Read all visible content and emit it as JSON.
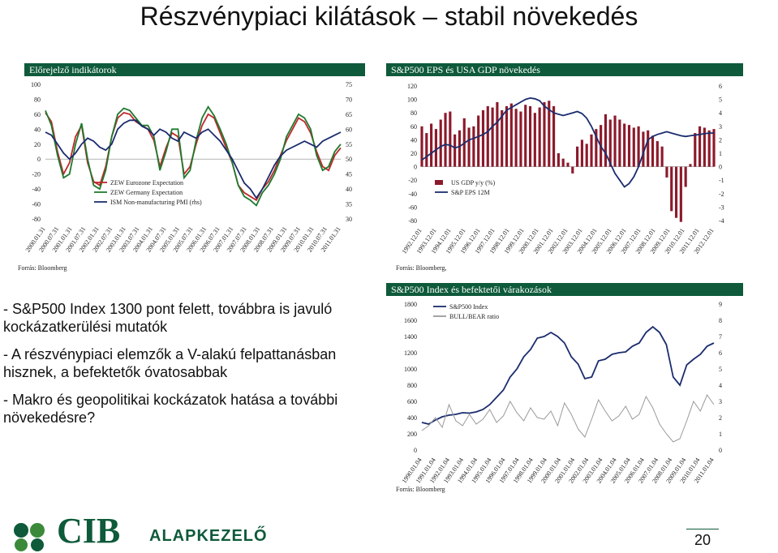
{
  "slide": {
    "title": "Részvénypiaci kilátások – stabil növekedés",
    "page_number": "20",
    "logo_text": "CIB",
    "logo_sub": "ALAPKEZELŐ",
    "bullets": [
      "- S&P500 Index 1300 pont felett, továbbra is javuló kockázatkerülési mutatók",
      "- A részvénypiaci elemzők a V-alakú felpattanásban hisznek, a befektetők óvatosabbak",
      "- Makro és geopolitikai kockázatok hatása a további növekedésre?"
    ]
  },
  "chart_data": [
    {
      "type": "line",
      "panel_title": "Előrejelző indikátorok",
      "source": "Forrás: Bloomberg",
      "ylim": [
        -80,
        100
      ],
      "y2lim": [
        30,
        75
      ],
      "yticks": [
        "100",
        "80",
        "60",
        "40",
        "20",
        "0",
        "-20",
        "-40",
        "-60",
        "-80"
      ],
      "y2ticks": [
        "75",
        "70",
        "65",
        "60",
        "55",
        "50",
        "45",
        "40",
        "35",
        "30"
      ],
      "xticks": [
        "2000.01.31",
        "2000.07.31",
        "2001.01.31",
        "2001.07.31",
        "2002.01.31",
        "2002.07.31",
        "2003.01.31",
        "2003.07.31",
        "2004.01.31",
        "2004.07.31",
        "2005.01.31",
        "2005.07.31",
        "2006.01.31",
        "2006.07.31",
        "2007.01.31",
        "2007.07.31",
        "2008.01.31",
        "2008.07.31",
        "2009.01.31",
        "2009.07.31",
        "2010.01.31",
        "2010.07.31",
        "2011.01.31"
      ],
      "series": [
        {
          "name": "ZEW Eurozone Expectation",
          "color": "#c0282a",
          "axis": "left",
          "values": [
            62,
            50,
            10,
            -20,
            -5,
            30,
            45,
            -5,
            -30,
            -35,
            -10,
            30,
            55,
            62,
            60,
            50,
            45,
            40,
            25,
            -10,
            15,
            35,
            30,
            -20,
            -10,
            20,
            45,
            60,
            55,
            35,
            15,
            -5,
            -35,
            -45,
            -50,
            -55,
            -40,
            -30,
            -15,
            5,
            25,
            40,
            55,
            50,
            35,
            10,
            -10,
            -15,
            5,
            15
          ]
        },
        {
          "name": "ZEW Germany Expectation",
          "color": "#1f7a2e",
          "axis": "left",
          "values": [
            65,
            45,
            5,
            -25,
            -20,
            20,
            48,
            0,
            -35,
            -40,
            -15,
            30,
            60,
            68,
            65,
            55,
            45,
            45,
            30,
            -15,
            10,
            40,
            40,
            -25,
            -15,
            25,
            55,
            70,
            58,
            40,
            20,
            -5,
            -35,
            -50,
            -55,
            -62,
            -45,
            -35,
            -20,
            0,
            30,
            45,
            60,
            55,
            40,
            5,
            -15,
            -10,
            10,
            20
          ]
        },
        {
          "name": "ISM Non-manufacturing PMI (rhs)",
          "color": "#1b2c6e",
          "axis": "right",
          "values": [
            59,
            58,
            55,
            52,
            50,
            52,
            55,
            57,
            56,
            54,
            53,
            55,
            60,
            62,
            63,
            63,
            61,
            60,
            58,
            60,
            59,
            57,
            56,
            59,
            58,
            57,
            59,
            60,
            58,
            56,
            53,
            50,
            46,
            42,
            40,
            37,
            40,
            44,
            48,
            51,
            53,
            54,
            55,
            56,
            55,
            54,
            56,
            57,
            58,
            59
          ]
        }
      ]
    },
    {
      "type": "bar",
      "panel_title": "S&P500 EPS és USA GDP növekedés",
      "source": "Forrás: Bloomberg,",
      "ylim": [
        -80,
        120
      ],
      "y2lim": [
        -4,
        6
      ],
      "yticks": [
        "120",
        "100",
        "80",
        "60",
        "40",
        "20",
        "0",
        "-20",
        "-40",
        "-60",
        "-80"
      ],
      "y2ticks": [
        "6",
        "5",
        "4",
        "3",
        "2",
        "1",
        "0",
        "-1",
        "-2",
        "-3",
        "-4"
      ],
      "xticks": [
        "1992.12.01",
        "1993.12.01",
        "1994.12.01",
        "1995.12.01",
        "1996.12.01",
        "1997.12.01",
        "1998.12.01",
        "1999.12.01",
        "2000.12.01",
        "2001.12.01",
        "2002.12.01",
        "2003.12.01",
        "2004.12.01",
        "2005.12.01",
        "2006.12.01",
        "2007.12.01",
        "2008.12.01",
        "2009.12.01",
        "2010.12.01",
        "2011.12.01",
        "2012.12.01"
      ],
      "series": [
        {
          "name": "US GDP y/y (%)",
          "color": "#8b1a2b",
          "axis": "right",
          "kind": "bar",
          "values": [
            3.0,
            2.5,
            3.2,
            2.8,
            3.5,
            4.0,
            4.1,
            2.4,
            2.7,
            3.6,
            2.9,
            3.0,
            3.8,
            4.2,
            4.5,
            4.4,
            4.8,
            4.2,
            4.5,
            4.7,
            4.3,
            4.1,
            4.6,
            4.5,
            4.0,
            4.4,
            4.8,
            4.9,
            4.5,
            1.0,
            0.6,
            0.3,
            -0.5,
            1.5,
            2.0,
            1.7,
            2.4,
            2.8,
            3.1,
            3.9,
            3.5,
            3.8,
            3.5,
            3.2,
            3.1,
            2.9,
            3.0,
            2.6,
            2.7,
            2.3,
            1.9,
            1.5,
            -0.8,
            -3.3,
            -3.8,
            -4.1,
            -1.5,
            0.2,
            2.5,
            3.0,
            2.9,
            2.7,
            2.8
          ]
        },
        {
          "name": "S&P EPS 12M",
          "color": "#1b2c6e",
          "axis": "left",
          "kind": "line",
          "values": [
            10,
            15,
            20,
            25,
            30,
            33,
            32,
            28,
            30,
            35,
            40,
            42,
            45,
            48,
            52,
            60,
            66,
            75,
            84,
            88,
            92,
            96,
            100,
            102,
            101,
            98,
            90,
            85,
            80,
            78,
            76,
            78,
            80,
            82,
            79,
            72,
            60,
            45,
            30,
            20,
            5,
            -10,
            -20,
            -30,
            -25,
            -15,
            0,
            20,
            40,
            45,
            48,
            50,
            52,
            50,
            48,
            46,
            45,
            46,
            47,
            48,
            49,
            50,
            50
          ]
        }
      ]
    },
    {
      "type": "line",
      "panel_title": "S&P500 Index és befektetői várakozások",
      "source": "Forrás: Bloomberg",
      "ylim": [
        0,
        1800
      ],
      "y2lim": [
        0,
        9
      ],
      "yticks": [
        "1800",
        "1600",
        "1400",
        "1200",
        "1000",
        "800",
        "600",
        "400",
        "200",
        "0"
      ],
      "y2ticks": [
        "9",
        "8",
        "7",
        "6",
        "5",
        "4",
        "3",
        "2",
        "1",
        "0"
      ],
      "xticks": [
        "1990.01.04",
        "1991.01.04",
        "1992.01.04",
        "1993.01.04",
        "1994.01.04",
        "1995.01.04",
        "1996.01.04",
        "1997.01.04",
        "1998.01.04",
        "1999.01.04",
        "2000.01.04",
        "2001.01.04",
        "2002.01.04",
        "2003.01.04",
        "2004.01.04",
        "2005.01.04",
        "2006.01.04",
        "2007.01.04",
        "2008.01.04",
        "2009.01.04",
        "2010.01.04",
        "2011.01.04"
      ],
      "series": [
        {
          "name": "S&P500 Index",
          "color": "#1b2c6e",
          "axis": "left",
          "values": [
            340,
            320,
            370,
            410,
            430,
            440,
            460,
            455,
            470,
            500,
            560,
            650,
            740,
            900,
            1000,
            1150,
            1240,
            1380,
            1400,
            1450,
            1400,
            1320,
            1150,
            1060,
            880,
            900,
            1100,
            1120,
            1180,
            1200,
            1210,
            1280,
            1320,
            1450,
            1520,
            1450,
            1300,
            900,
            800,
            1050,
            1120,
            1180,
            1280,
            1320
          ]
        },
        {
          "name": "BULL/BEAR ratio",
          "color": "#9a9a9a",
          "axis": "right",
          "values": [
            1.2,
            1.5,
            2.0,
            1.4,
            2.8,
            1.8,
            1.5,
            2.2,
            1.6,
            1.9,
            2.5,
            1.7,
            2.1,
            3.0,
            2.3,
            1.8,
            2.6,
            2.0,
            1.9,
            2.4,
            1.5,
            2.9,
            2.2,
            1.3,
            0.8,
            1.9,
            3.1,
            2.4,
            1.8,
            2.1,
            2.7,
            1.9,
            2.2,
            3.3,
            2.6,
            1.6,
            1.0,
            0.5,
            0.7,
            1.8,
            3.0,
            2.4,
            3.4,
            2.8
          ]
        }
      ]
    }
  ]
}
